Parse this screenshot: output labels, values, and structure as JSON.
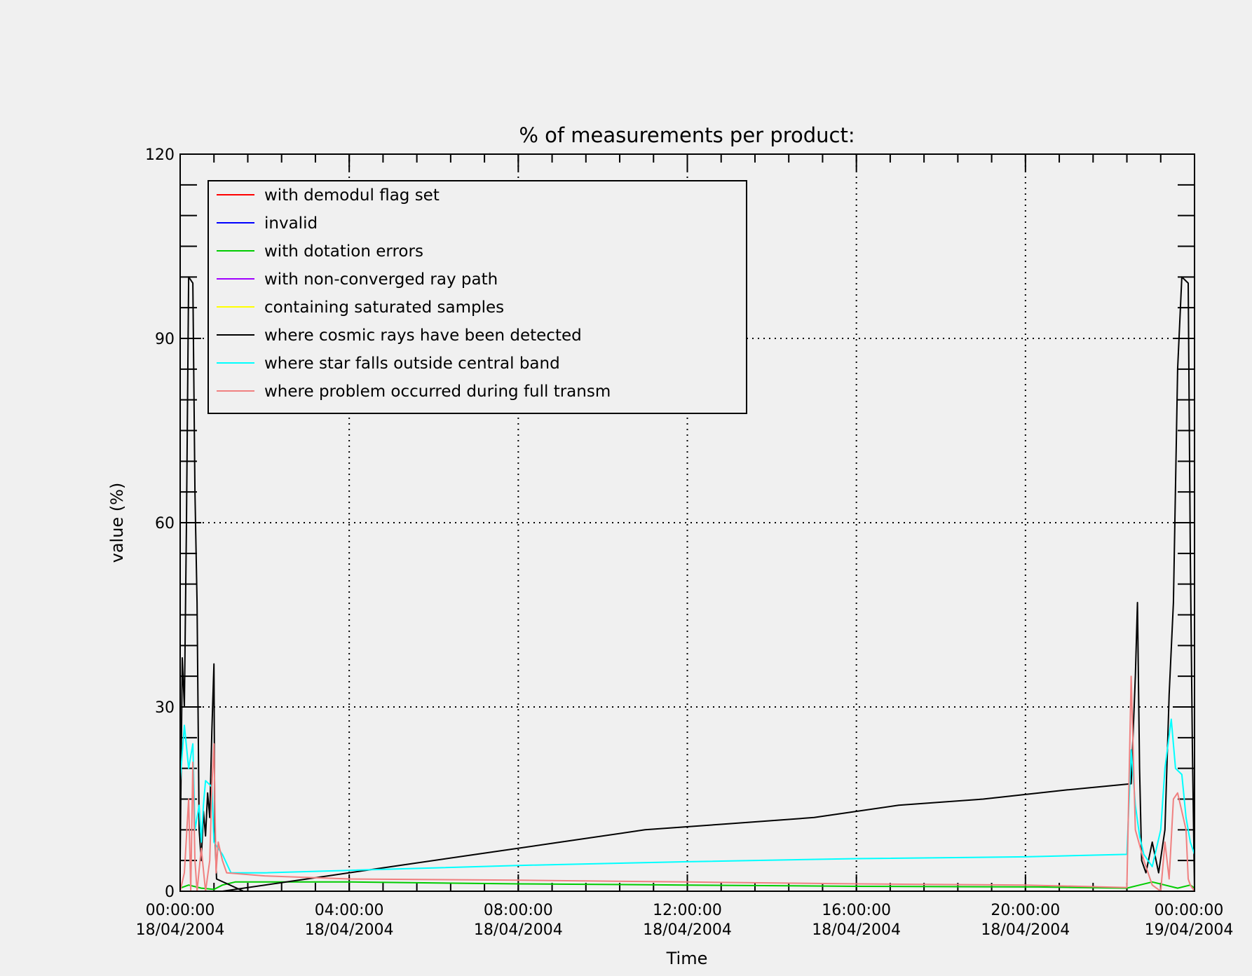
{
  "chart_data": {
    "type": "line",
    "title": "% of measurements per product:",
    "xlabel": "Time",
    "ylabel": "value (%)",
    "x_unit": "hours since 00:00:00 18/04/2004",
    "xlim": [
      0,
      24
    ],
    "ylim": [
      0,
      120
    ],
    "yticks": [
      0,
      30,
      60,
      90,
      120
    ],
    "xticks": [
      {
        "x": 0,
        "time": "00:00:00",
        "date": "18/04/2004"
      },
      {
        "x": 4,
        "time": "04:00:00",
        "date": "18/04/2004"
      },
      {
        "x": 8,
        "time": "08:00:00",
        "date": "18/04/2004"
      },
      {
        "x": 12,
        "time": "12:00:00",
        "date": "18/04/2004"
      },
      {
        "x": 16,
        "time": "16:00:00",
        "date": "18/04/2004"
      },
      {
        "x": 20,
        "time": "20:00:00",
        "date": "18/04/2004"
      },
      {
        "x": 24,
        "time": "00:00:00",
        "date": "19/04/2004"
      }
    ],
    "grid": true,
    "legend_position": "top-left",
    "series": [
      {
        "name": "with demodul flag set",
        "color": "#ff0000",
        "points": []
      },
      {
        "name": "invalid",
        "color": "#0000ff",
        "points": []
      },
      {
        "name": "with dotation errors",
        "color": "#00cc00",
        "points": [
          [
            0.0,
            0.5
          ],
          [
            0.2,
            1.0
          ],
          [
            0.5,
            0.5
          ],
          [
            0.8,
            0.3
          ],
          [
            1.0,
            1.0
          ],
          [
            1.3,
            1.5
          ],
          [
            4.0,
            1.5
          ],
          [
            8.0,
            1.2
          ],
          [
            12.0,
            1.0
          ],
          [
            16.0,
            0.8
          ],
          [
            20.3,
            0.7
          ],
          [
            22.4,
            0.5
          ],
          [
            22.7,
            1.0
          ],
          [
            23.0,
            1.5
          ],
          [
            23.3,
            1.0
          ],
          [
            23.6,
            0.5
          ],
          [
            23.9,
            1.0
          ],
          [
            24.0,
            0.5
          ]
        ]
      },
      {
        "name": "with non-converged ray path",
        "color": "#a000ff",
        "points": [
          [
            0.0,
            0.0
          ],
          [
            24.0,
            0.0
          ]
        ]
      },
      {
        "name": "containing saturated samples",
        "color": "#ffff00",
        "points": []
      },
      {
        "name": "where cosmic rays have been detected",
        "color": "#000000",
        "points": [
          [
            0.0,
            5
          ],
          [
            0.05,
            38
          ],
          [
            0.1,
            30
          ],
          [
            0.15,
            60
          ],
          [
            0.2,
            100
          ],
          [
            0.3,
            99
          ],
          [
            0.35,
            65
          ],
          [
            0.4,
            47
          ],
          [
            0.45,
            10
          ],
          [
            0.5,
            5
          ],
          [
            0.55,
            13
          ],
          [
            0.6,
            9
          ],
          [
            0.65,
            16
          ],
          [
            0.7,
            12
          ],
          [
            0.75,
            26
          ],
          [
            0.8,
            37
          ],
          [
            0.82,
            10
          ],
          [
            0.86,
            2
          ],
          [
            1.5,
            0
          ],
          [
            24.0,
            0
          ]
        ]
      },
      {
        "name": "where cosmic rays have been detected (trend)",
        "color": "#000000",
        "legend": false,
        "points": [
          [
            1.0,
            0
          ],
          [
            3.0,
            2
          ],
          [
            5.0,
            4
          ],
          [
            7.0,
            6
          ],
          [
            9.0,
            8
          ],
          [
            11.0,
            10
          ],
          [
            13.0,
            11
          ],
          [
            15.0,
            12
          ],
          [
            17.0,
            14
          ],
          [
            19.0,
            15
          ],
          [
            21.0,
            16.5
          ],
          [
            22.5,
            17.5
          ],
          [
            22.6,
            35
          ],
          [
            22.65,
            47
          ],
          [
            22.7,
            20
          ],
          [
            22.75,
            5
          ],
          [
            22.85,
            3
          ],
          [
            23.0,
            8
          ],
          [
            23.15,
            3
          ],
          [
            23.3,
            10
          ],
          [
            23.4,
            32
          ],
          [
            23.5,
            47
          ],
          [
            23.6,
            85
          ],
          [
            23.7,
            100
          ],
          [
            23.85,
            99
          ],
          [
            23.9,
            55
          ],
          [
            23.95,
            23
          ],
          [
            24.0,
            0
          ]
        ]
      },
      {
        "name": "where star falls outside central band",
        "color": "#00ffff",
        "points": [
          [
            0.0,
            18
          ],
          [
            0.1,
            27
          ],
          [
            0.2,
            20
          ],
          [
            0.3,
            24
          ],
          [
            0.35,
            10
          ],
          [
            0.45,
            14
          ],
          [
            0.5,
            8
          ],
          [
            0.55,
            14
          ],
          [
            0.6,
            18
          ],
          [
            0.75,
            17
          ],
          [
            0.8,
            8
          ],
          [
            1.0,
            6
          ],
          [
            1.2,
            3
          ],
          [
            2.0,
            3
          ],
          [
            4.0,
            3.4
          ],
          [
            8.0,
            4.2
          ],
          [
            12.0,
            4.8
          ],
          [
            16.0,
            5.3
          ],
          [
            20.0,
            5.6
          ],
          [
            22.4,
            6
          ],
          [
            22.5,
            23
          ],
          [
            22.6,
            14
          ],
          [
            22.7,
            9
          ],
          [
            22.8,
            6
          ],
          [
            23.0,
            4
          ],
          [
            23.2,
            10
          ],
          [
            23.3,
            20
          ],
          [
            23.45,
            28
          ],
          [
            23.55,
            20
          ],
          [
            23.7,
            19
          ],
          [
            23.8,
            12
          ],
          [
            23.9,
            8
          ],
          [
            24.0,
            6
          ]
        ]
      },
      {
        "name": "where problem occurred during full transm",
        "color": "#f08080",
        "points": [
          [
            0.0,
            0
          ],
          [
            0.1,
            3
          ],
          [
            0.2,
            15
          ],
          [
            0.25,
            0
          ],
          [
            0.3,
            21
          ],
          [
            0.35,
            5
          ],
          [
            0.4,
            0
          ],
          [
            0.5,
            7
          ],
          [
            0.6,
            0
          ],
          [
            0.7,
            5
          ],
          [
            0.75,
            17
          ],
          [
            0.8,
            24
          ],
          [
            0.85,
            3
          ],
          [
            0.9,
            8
          ],
          [
            1.0,
            5
          ],
          [
            1.1,
            3
          ],
          [
            2.0,
            2.5
          ],
          [
            4.0,
            2.0
          ],
          [
            8.0,
            1.8
          ],
          [
            12.0,
            1.5
          ],
          [
            16.0,
            1.2
          ],
          [
            20.0,
            1.0
          ],
          [
            22.4,
            0.6
          ],
          [
            22.5,
            35
          ],
          [
            22.6,
            10
          ],
          [
            22.8,
            5
          ],
          [
            22.9,
            3
          ],
          [
            23.0,
            1
          ],
          [
            23.2,
            0
          ],
          [
            23.3,
            8
          ],
          [
            23.4,
            2
          ],
          [
            23.5,
            15
          ],
          [
            23.6,
            16
          ],
          [
            23.8,
            10
          ],
          [
            23.85,
            2
          ],
          [
            23.9,
            1
          ],
          [
            24.0,
            0
          ]
        ]
      }
    ]
  }
}
